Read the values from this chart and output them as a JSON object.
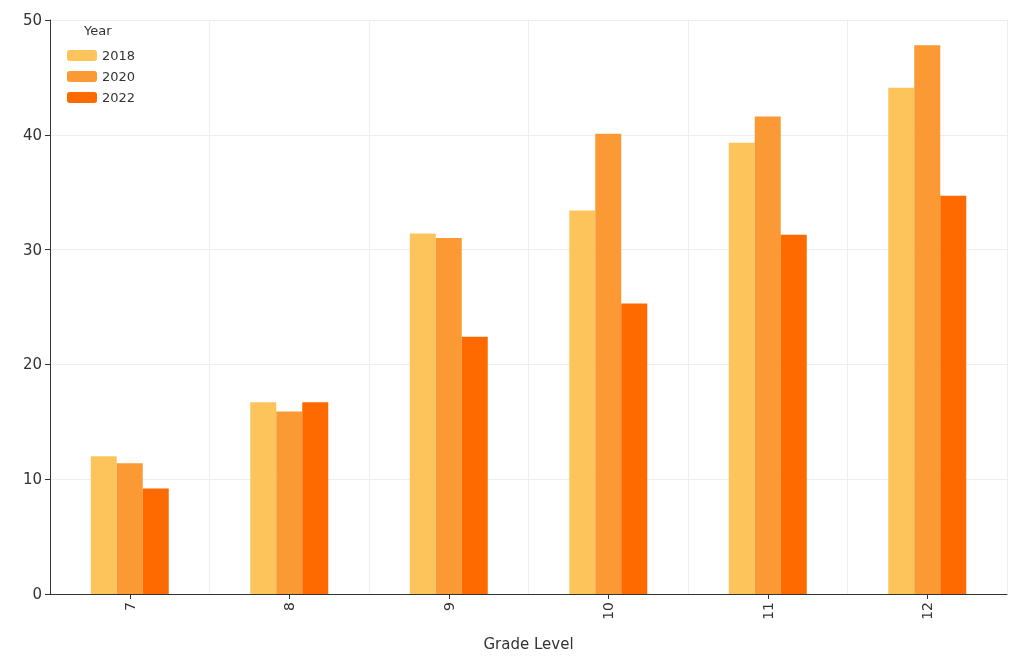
{
  "chart_data": {
    "type": "bar",
    "xlabel": "Grade Level",
    "legend_title": "Year",
    "categories": [
      "7",
      "8",
      "9",
      "10",
      "11",
      "12"
    ],
    "series": [
      {
        "name": "2018",
        "color": "#fdc45c",
        "values": [
          12.0,
          16.7,
          31.4,
          33.4,
          39.3,
          44.1
        ]
      },
      {
        "name": "2020",
        "color": "#fb9a35",
        "values": [
          11.4,
          15.9,
          31.0,
          40.1,
          41.6,
          47.8
        ]
      },
      {
        "name": "2022",
        "color": "#ff6a00",
        "values": [
          9.2,
          16.7,
          22.4,
          25.3,
          31.3,
          34.7
        ]
      }
    ],
    "ylim": [
      0,
      50
    ],
    "yticks": [
      0,
      10,
      20,
      30,
      40,
      50
    ],
    "grid": true,
    "legend": "top left"
  }
}
